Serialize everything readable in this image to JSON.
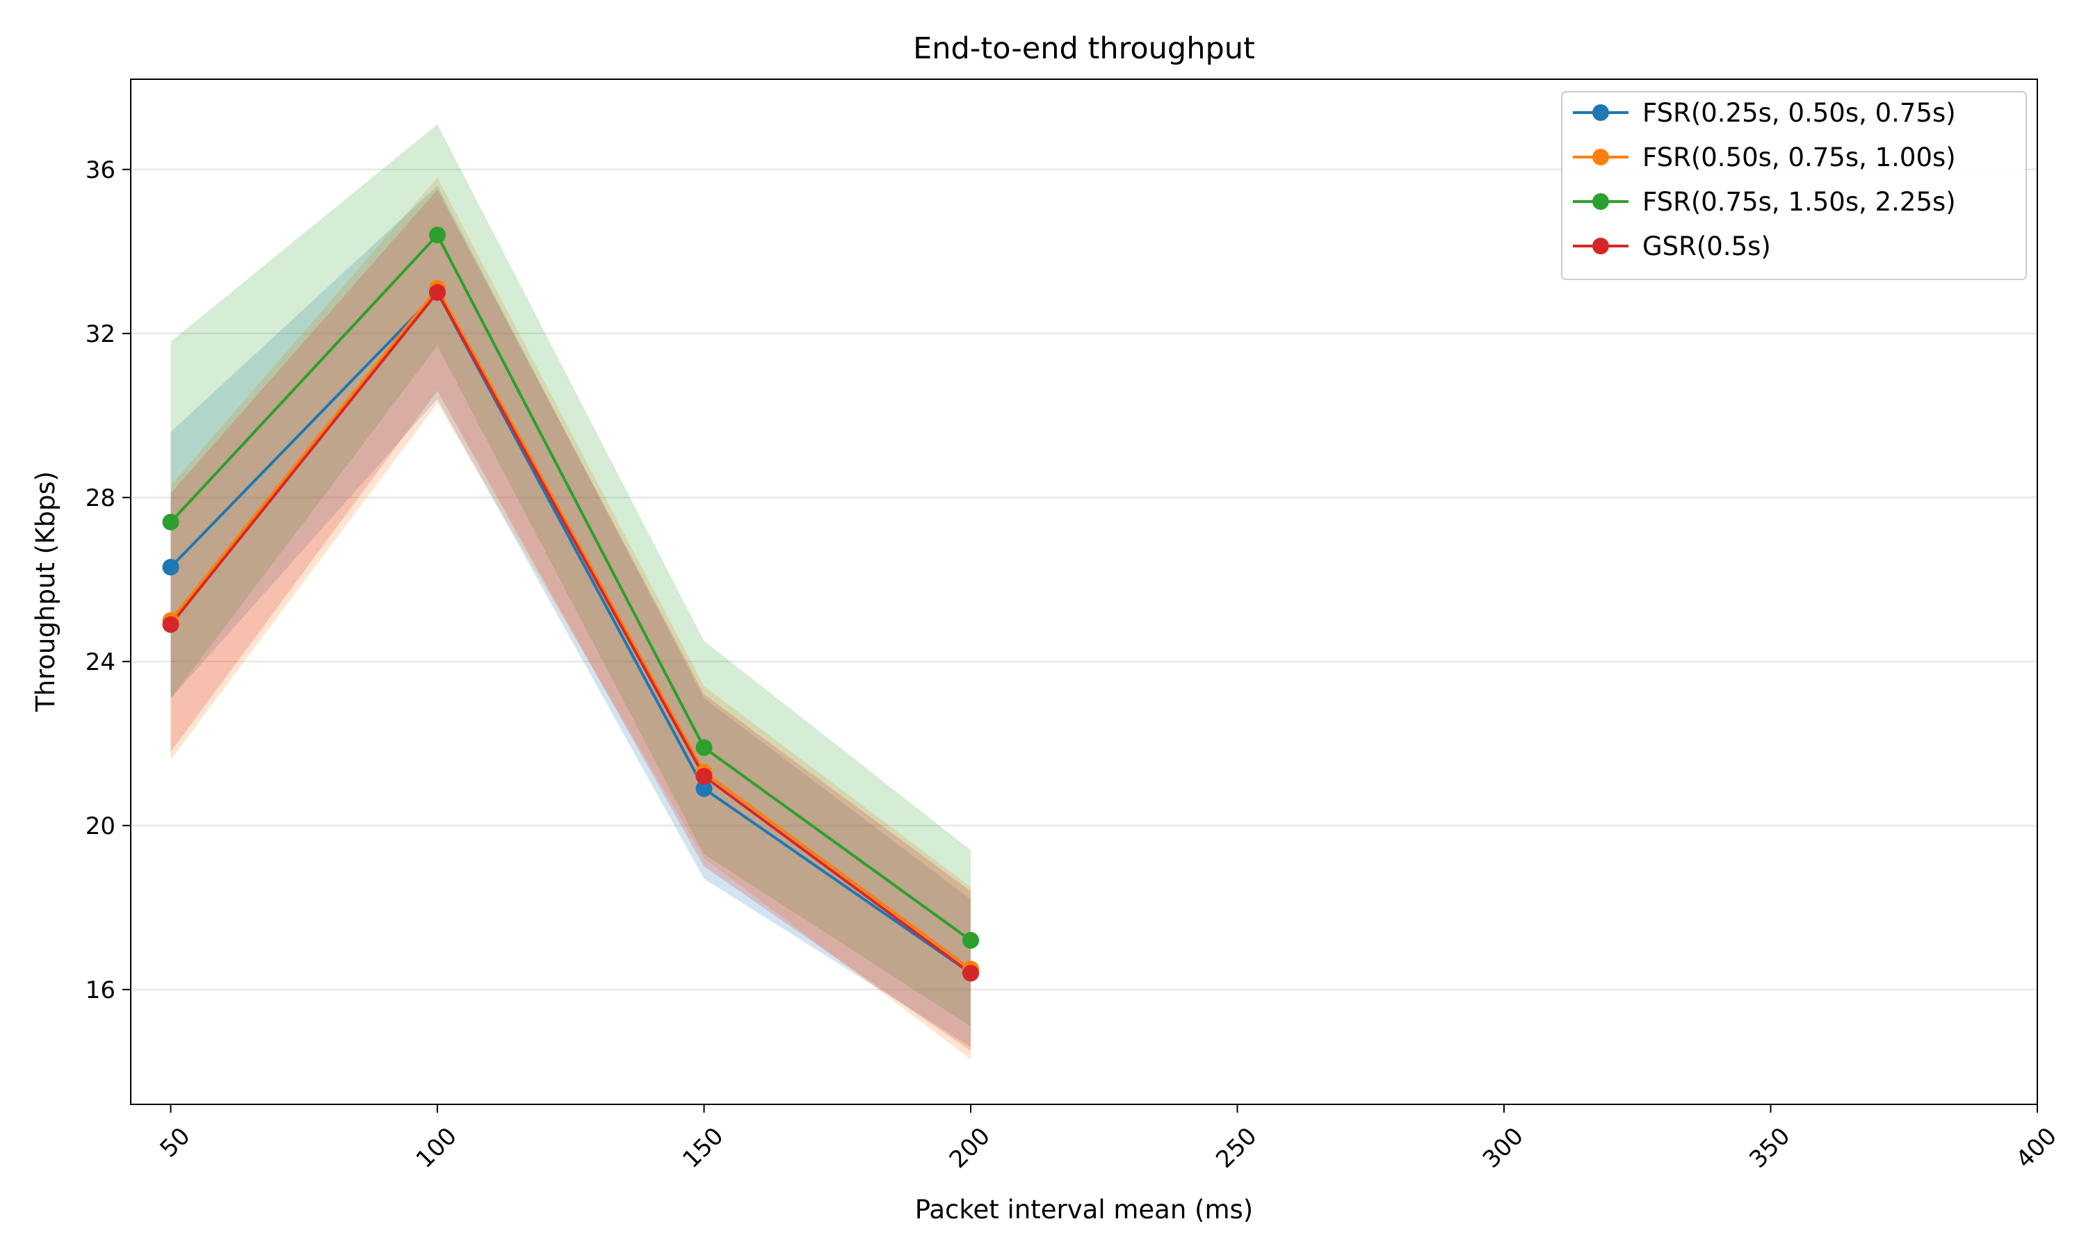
{
  "chart_data": {
    "type": "line",
    "title": "End-to-end throughput",
    "xlabel": "Packet interval mean (ms)",
    "ylabel": "Throughput (Kbps)",
    "xlim": [
      42.5,
      400
    ],
    "ylim": [
      13.2,
      38.2
    ],
    "xticks": [
      50,
      100,
      150,
      200,
      250,
      300,
      350,
      400
    ],
    "xtick_labels": [
      "50",
      "100",
      "150",
      "200",
      "250",
      "300",
      "350",
      "400"
    ],
    "yticks": [
      16,
      20,
      24,
      28,
      32,
      36
    ],
    "ytick_labels": [
      "16",
      "20",
      "24",
      "28",
      "32",
      "36"
    ],
    "grid": "horizontal",
    "legend_position": "top-right",
    "x": [
      50,
      100,
      150,
      200
    ],
    "series": [
      {
        "name": "FSR(0.25s, 0.50s, 0.75s)",
        "color": "#1f77b4",
        "values": [
          26.3,
          33.0,
          20.9,
          16.4
        ],
        "lower": [
          23.1,
          30.4,
          18.7,
          14.6
        ],
        "upper": [
          29.6,
          35.6,
          23.1,
          18.2
        ]
      },
      {
        "name": "FSR(0.50s, 0.75s, 1.00s)",
        "color": "#ff7f0e",
        "values": [
          25.0,
          33.1,
          21.3,
          16.5
        ],
        "lower": [
          21.6,
          30.3,
          19.2,
          14.3
        ],
        "upper": [
          28.3,
          35.8,
          23.4,
          18.5
        ]
      },
      {
        "name": "FSR(0.75s, 1.50s, 2.25s)",
        "color": "#2ca02c",
        "values": [
          27.4,
          34.4,
          21.9,
          17.2
        ],
        "lower": [
          23.1,
          31.7,
          19.3,
          15.1
        ],
        "upper": [
          31.8,
          37.1,
          24.5,
          19.4
        ]
      },
      {
        "name": "GSR(0.5s)",
        "color": "#d62728",
        "values": [
          24.9,
          33.0,
          21.2,
          16.4
        ],
        "lower": [
          21.8,
          30.6,
          19.0,
          14.5
        ],
        "upper": [
          28.1,
          35.5,
          23.2,
          18.4
        ]
      }
    ]
  }
}
